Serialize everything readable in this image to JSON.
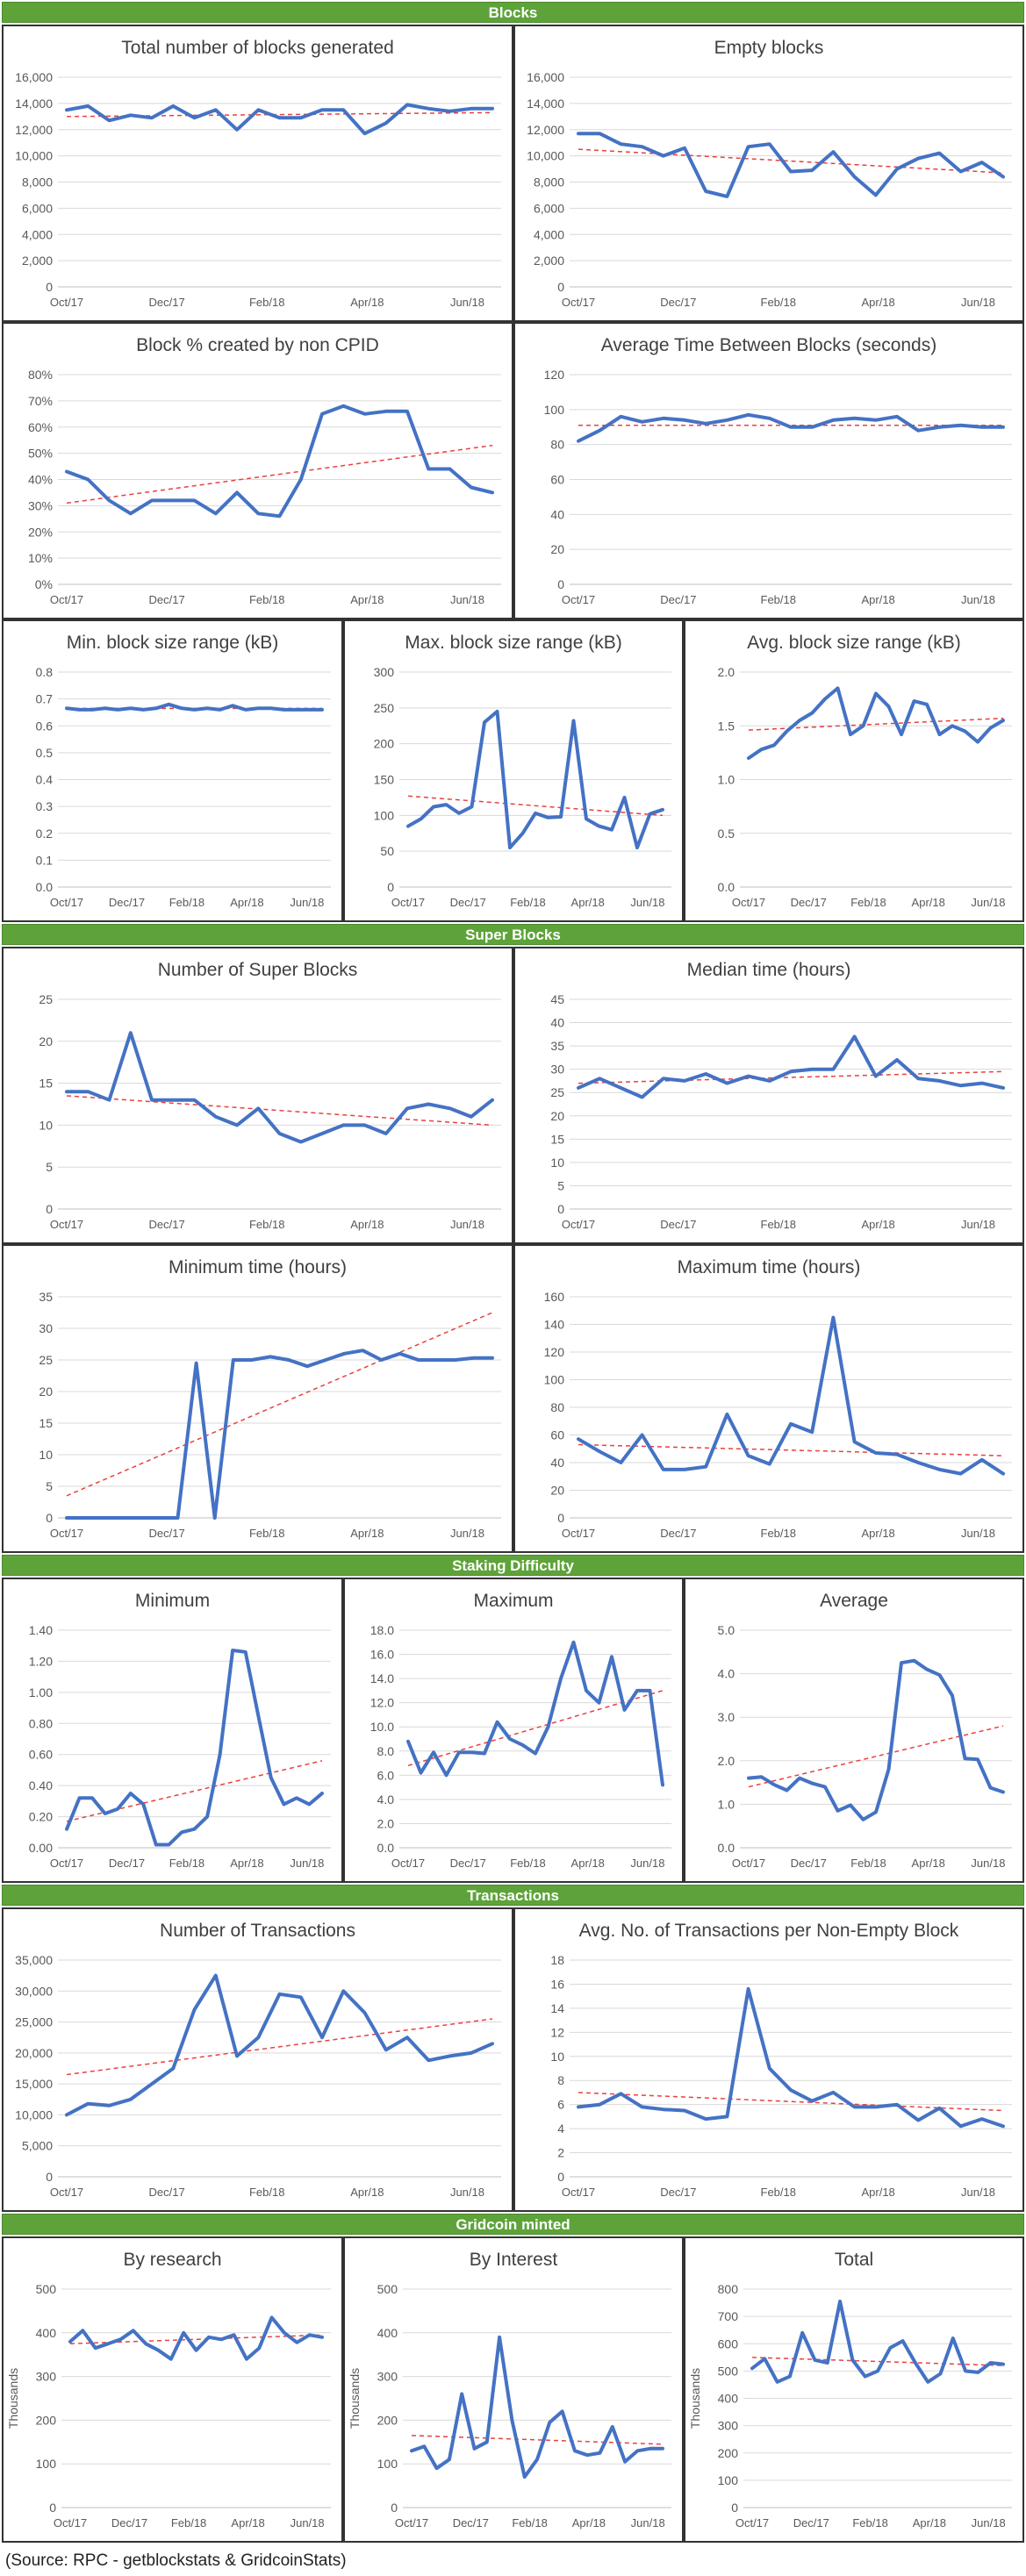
{
  "sections": [
    {
      "label": "Blocks"
    },
    {
      "label": "Super Blocks"
    },
    {
      "label": "Staking Difficulty"
    },
    {
      "label": "Transactions"
    },
    {
      "label": "Gridcoin minted"
    }
  ],
  "source": "(Source: RPC - getblockstats & GridcoinStats)",
  "colors": {
    "line": "#4472c4",
    "trend": "#e8413e",
    "grid": "#d9d9d9",
    "band": "#5ea33a"
  },
  "chart_data": [
    {
      "id": "total-blocks",
      "type": "line",
      "title": "Total number of blocks generated",
      "x_ticks": [
        "Oct/17",
        "Dec/17",
        "Feb/18",
        "Apr/18",
        "Jun/18"
      ],
      "y_ticks": [
        "0",
        "2,000",
        "4,000",
        "6,000",
        "8,000",
        "10,000",
        "12,000",
        "14,000",
        "16,000"
      ],
      "ylim": [
        0,
        16000
      ],
      "values": [
        13500,
        13800,
        12700,
        13100,
        12900,
        13800,
        12900,
        13500,
        12000,
        13500,
        12900,
        12900,
        13500,
        13500,
        11700,
        12500,
        13900,
        13600,
        13400,
        13600,
        13600
      ],
      "trend": [
        13000,
        13300
      ]
    },
    {
      "id": "empty-blocks",
      "type": "line",
      "title": "Empty blocks",
      "x_ticks": [
        "Oct/17",
        "Dec/17",
        "Feb/18",
        "Apr/18",
        "Jun/18"
      ],
      "y_ticks": [
        "0",
        "2,000",
        "4,000",
        "6,000",
        "8,000",
        "10,000",
        "12,000",
        "14,000",
        "16,000"
      ],
      "ylim": [
        0,
        16000
      ],
      "values": [
        11700,
        11700,
        10900,
        10700,
        10000,
        10600,
        7300,
        6900,
        10700,
        10900,
        8800,
        8900,
        10300,
        8400,
        7000,
        9000,
        9800,
        10200,
        8800,
        9500,
        8400
      ],
      "trend": [
        10500,
        8700
      ]
    },
    {
      "id": "non-cpid",
      "type": "line",
      "title": "Block % created by non CPID",
      "x_ticks": [
        "Oct/17",
        "Dec/17",
        "Feb/18",
        "Apr/18",
        "Jun/18"
      ],
      "y_ticks": [
        "0%",
        "10%",
        "20%",
        "30%",
        "40%",
        "50%",
        "60%",
        "70%",
        "80%"
      ],
      "ylim": [
        0,
        80
      ],
      "values": [
        43,
        40,
        32,
        27,
        32,
        32,
        32,
        27,
        35,
        27,
        26,
        40,
        65,
        68,
        65,
        66,
        66,
        44,
        44,
        37,
        35
      ],
      "trend": [
        31,
        53
      ]
    },
    {
      "id": "avg-time",
      "type": "line",
      "title": "Average Time Between Blocks (seconds)",
      "x_ticks": [
        "Oct/17",
        "Dec/17",
        "Feb/18",
        "Apr/18",
        "Jun/18"
      ],
      "y_ticks": [
        "0",
        "20",
        "40",
        "60",
        "80",
        "100",
        "120"
      ],
      "ylim": [
        0,
        120
      ],
      "values": [
        82,
        88,
        96,
        93,
        95,
        94,
        92,
        94,
        97,
        95,
        90,
        90,
        94,
        95,
        94,
        96,
        88,
        90,
        91,
        90,
        90
      ],
      "trend": [
        91,
        91
      ]
    },
    {
      "id": "min-block-size",
      "type": "line",
      "title": "Min. block size range (kB)",
      "x_ticks": [
        "Oct/17",
        "Dec/17",
        "Feb/18",
        "Apr/18",
        "Jun/18"
      ],
      "y_ticks": [
        "0.0",
        "0.1",
        "0.2",
        "0.3",
        "0.4",
        "0.5",
        "0.6",
        "0.7",
        "0.8"
      ],
      "ylim": [
        0,
        0.8
      ],
      "values": [
        0.665,
        0.66,
        0.66,
        0.665,
        0.66,
        0.665,
        0.66,
        0.665,
        0.68,
        0.665,
        0.66,
        0.665,
        0.66,
        0.675,
        0.66,
        0.665,
        0.665,
        0.66,
        0.66,
        0.66,
        0.66
      ],
      "trend": [
        0.665,
        0.665
      ]
    },
    {
      "id": "max-block-size",
      "type": "line",
      "title": "Max. block size range (kB)",
      "x_ticks": [
        "Oct/17",
        "Dec/17",
        "Feb/18",
        "Apr/18",
        "Jun/18"
      ],
      "y_ticks": [
        "0",
        "50",
        "100",
        "150",
        "200",
        "250",
        "300"
      ],
      "ylim": [
        0,
        300
      ],
      "values": [
        85,
        95,
        112,
        115,
        103,
        112,
        230,
        245,
        55,
        75,
        103,
        97,
        98,
        232,
        95,
        85,
        80,
        125,
        55,
        102,
        108
      ],
      "trend": [
        127,
        100
      ]
    },
    {
      "id": "avg-block-size",
      "type": "line",
      "title": "Avg. block size range (kB)",
      "x_ticks": [
        "Oct/17",
        "Dec/17",
        "Feb/18",
        "Apr/18",
        "Jun/18"
      ],
      "y_ticks": [
        "0.0",
        "0.5",
        "1.0",
        "1.5",
        "2.0"
      ],
      "ylim": [
        0,
        2.0
      ],
      "values": [
        1.2,
        1.28,
        1.32,
        1.45,
        1.55,
        1.62,
        1.75,
        1.85,
        1.42,
        1.5,
        1.8,
        1.68,
        1.42,
        1.73,
        1.7,
        1.42,
        1.5,
        1.45,
        1.35,
        1.48,
        1.55
      ],
      "trend": [
        1.46,
        1.57
      ]
    },
    {
      "id": "super-blocks",
      "type": "line",
      "title": "Number of Super Blocks",
      "x_ticks": [
        "Oct/17",
        "Dec/17",
        "Feb/18",
        "Apr/18",
        "Jun/18"
      ],
      "y_ticks": [
        "0",
        "5",
        "10",
        "15",
        "20",
        "25"
      ],
      "ylim": [
        0,
        25
      ],
      "values": [
        14,
        14,
        13,
        21,
        13,
        13,
        13,
        11,
        10,
        12,
        9,
        8,
        9,
        10,
        10,
        9,
        12,
        12.5,
        12,
        11,
        13
      ],
      "trend": [
        13.5,
        10
      ]
    },
    {
      "id": "median-time",
      "type": "line",
      "title": "Median time (hours)",
      "x_ticks": [
        "Oct/17",
        "Dec/17",
        "Feb/18",
        "Apr/18",
        "Jun/18"
      ],
      "y_ticks": [
        "0",
        "5",
        "10",
        "15",
        "20",
        "25",
        "30",
        "35",
        "40",
        "45"
      ],
      "ylim": [
        0,
        45
      ],
      "values": [
        26,
        28,
        26,
        24,
        28,
        27.5,
        29,
        27,
        28.5,
        27.5,
        29.5,
        30,
        30,
        37,
        28.5,
        32,
        28,
        27.5,
        26.5,
        27,
        26
      ],
      "trend": [
        27,
        29.5
      ]
    },
    {
      "id": "minimum-time",
      "type": "line",
      "title": "Minimum time (hours)",
      "x_ticks": [
        "Oct/17",
        "Dec/17",
        "Feb/18",
        "Apr/18",
        "Jun/18"
      ],
      "y_ticks": [
        "0",
        "5",
        "10",
        "15",
        "20",
        "25",
        "30",
        "35"
      ],
      "ylim": [
        0,
        35
      ],
      "values": [
        0,
        0,
        0,
        0,
        0,
        0,
        0,
        24.5,
        0,
        25,
        25,
        25.5,
        25,
        24,
        25,
        26,
        26.5,
        25,
        26,
        25,
        25,
        25,
        25.3,
        25.3
      ],
      "trend": [
        3.5,
        32.5
      ]
    },
    {
      "id": "maximum-time",
      "type": "line",
      "title": "Maximum time (hours)",
      "x_ticks": [
        "Oct/17",
        "Dec/17",
        "Feb/18",
        "Apr/18",
        "Jun/18"
      ],
      "y_ticks": [
        "0",
        "20",
        "40",
        "60",
        "80",
        "100",
        "120",
        "140",
        "160"
      ],
      "ylim": [
        0,
        160
      ],
      "values": [
        57,
        48,
        40,
        60,
        35,
        35,
        37,
        75,
        45,
        39,
        68,
        62,
        145,
        55,
        47,
        46,
        40,
        35,
        32,
        42,
        32
      ],
      "trend": [
        53,
        45
      ]
    },
    {
      "id": "difficulty-min",
      "type": "line",
      "title": "Minimum",
      "x_ticks": [
        "Oct/17",
        "Dec/17",
        "Feb/18",
        "Apr/18",
        "Jun/18"
      ],
      "y_ticks": [
        "0.00",
        "0.20",
        "0.40",
        "0.60",
        "0.80",
        "1.00",
        "1.20",
        "1.40"
      ],
      "ylim": [
        0,
        1.4
      ],
      "values": [
        0.12,
        0.32,
        0.32,
        0.22,
        0.25,
        0.35,
        0.28,
        0.02,
        0.02,
        0.1,
        0.12,
        0.2,
        0.6,
        1.27,
        1.26,
        0.85,
        0.45,
        0.28,
        0.32,
        0.28,
        0.35
      ],
      "trend": [
        0.17,
        0.56
      ]
    },
    {
      "id": "difficulty-max",
      "type": "line",
      "title": "Maximum",
      "x_ticks": [
        "Oct/17",
        "Dec/17",
        "Feb/18",
        "Apr/18",
        "Jun/18"
      ],
      "y_ticks": [
        "0.0",
        "2.0",
        "4.0",
        "6.0",
        "8.0",
        "10.0",
        "12.0",
        "14.0",
        "16.0",
        "18.0"
      ],
      "ylim": [
        0,
        18
      ],
      "values": [
        8.8,
        6.2,
        7.9,
        6,
        7.9,
        7.9,
        7.8,
        10.4,
        9,
        8.5,
        7.8,
        10,
        14,
        17,
        13,
        12,
        15.8,
        11.4,
        13,
        13,
        5.2
      ],
      "trend": [
        6.8,
        13
      ]
    },
    {
      "id": "difficulty-avg",
      "type": "line",
      "title": "Average",
      "x_ticks": [
        "Oct/17",
        "Dec/17",
        "Feb/18",
        "Apr/18",
        "Jun/18"
      ],
      "y_ticks": [
        "0.0",
        "1.0",
        "2.0",
        "3.0",
        "4.0",
        "5.0"
      ],
      "ylim": [
        0,
        5
      ],
      "values": [
        1.6,
        1.63,
        1.45,
        1.32,
        1.6,
        1.48,
        1.4,
        0.85,
        0.98,
        0.65,
        0.82,
        1.8,
        4.25,
        4.3,
        4.1,
        3.97,
        3.5,
        2.05,
        2.03,
        1.38,
        1.28
      ],
      "trend": [
        1.4,
        2.8
      ]
    },
    {
      "id": "transactions",
      "type": "line",
      "title": "Number of Transactions",
      "x_ticks": [
        "Oct/17",
        "Dec/17",
        "Feb/18",
        "Apr/18",
        "Jun/18"
      ],
      "y_ticks": [
        "0",
        "5,000",
        "10,000",
        "15,000",
        "20,000",
        "25,000",
        "30,000",
        "35,000"
      ],
      "ylim": [
        0,
        35000
      ],
      "values": [
        10000,
        11800,
        11500,
        12500,
        15000,
        17500,
        27000,
        32500,
        19500,
        22500,
        29500,
        29000,
        22500,
        30000,
        26500,
        20500,
        22500,
        18800,
        19500,
        20000,
        21500
      ],
      "trend": [
        16500,
        25500
      ]
    },
    {
      "id": "tx-per-block",
      "type": "line",
      "title": "Avg. No. of Transactions per Non-Empty Block",
      "x_ticks": [
        "Oct/17",
        "Dec/17",
        "Feb/18",
        "Apr/18",
        "Jun/18"
      ],
      "y_ticks": [
        "0",
        "2",
        "4",
        "6",
        "8",
        "10",
        "12",
        "14",
        "16",
        "18"
      ],
      "ylim": [
        0,
        18
      ],
      "values": [
        5.8,
        6,
        6.9,
        5.8,
        5.6,
        5.5,
        4.8,
        5,
        15.6,
        9,
        7.2,
        6.3,
        7,
        5.8,
        5.8,
        6,
        4.7,
        5.7,
        4.2,
        4.8,
        4.2
      ],
      "trend": [
        7,
        5.5
      ]
    },
    {
      "id": "minted-research",
      "type": "line",
      "title": "By research",
      "ylabel": "Thousands",
      "x_ticks": [
        "Oct/17",
        "Dec/17",
        "Feb/18",
        "Apr/18",
        "Jun/18"
      ],
      "y_ticks": [
        "0",
        "100",
        "200",
        "300",
        "400",
        "500"
      ],
      "ylim": [
        0,
        500
      ],
      "values": [
        380,
        405,
        365,
        375,
        385,
        405,
        375,
        360,
        340,
        400,
        360,
        390,
        385,
        395,
        340,
        365,
        435,
        400,
        378,
        395,
        390
      ],
      "trend": [
        375,
        395
      ]
    },
    {
      "id": "minted-interest",
      "type": "line",
      "title": "By Interest",
      "ylabel": "Thousands",
      "x_ticks": [
        "Oct/17",
        "Dec/17",
        "Feb/18",
        "Apr/18",
        "Jun/18"
      ],
      "y_ticks": [
        "0",
        "100",
        "200",
        "300",
        "400",
        "500"
      ],
      "ylim": [
        0,
        500
      ],
      "values": [
        130,
        140,
        90,
        110,
        260,
        135,
        150,
        390,
        200,
        70,
        110,
        195,
        220,
        130,
        120,
        125,
        185,
        105,
        130,
        135,
        135
      ],
      "trend": [
        165,
        145
      ]
    },
    {
      "id": "minted-total",
      "type": "line",
      "title": "Total",
      "ylabel": "Thousands",
      "x_ticks": [
        "Oct/17",
        "Dec/17",
        "Feb/18",
        "Apr/18",
        "Jun/18"
      ],
      "y_ticks": [
        "0",
        "100",
        "200",
        "300",
        "400",
        "500",
        "600",
        "700",
        "800"
      ],
      "ylim": [
        0,
        800
      ],
      "values": [
        510,
        545,
        460,
        480,
        640,
        540,
        530,
        755,
        540,
        480,
        500,
        585,
        610,
        530,
        460,
        490,
        620,
        500,
        495,
        530,
        525
      ],
      "trend": [
        550,
        520
      ]
    }
  ]
}
